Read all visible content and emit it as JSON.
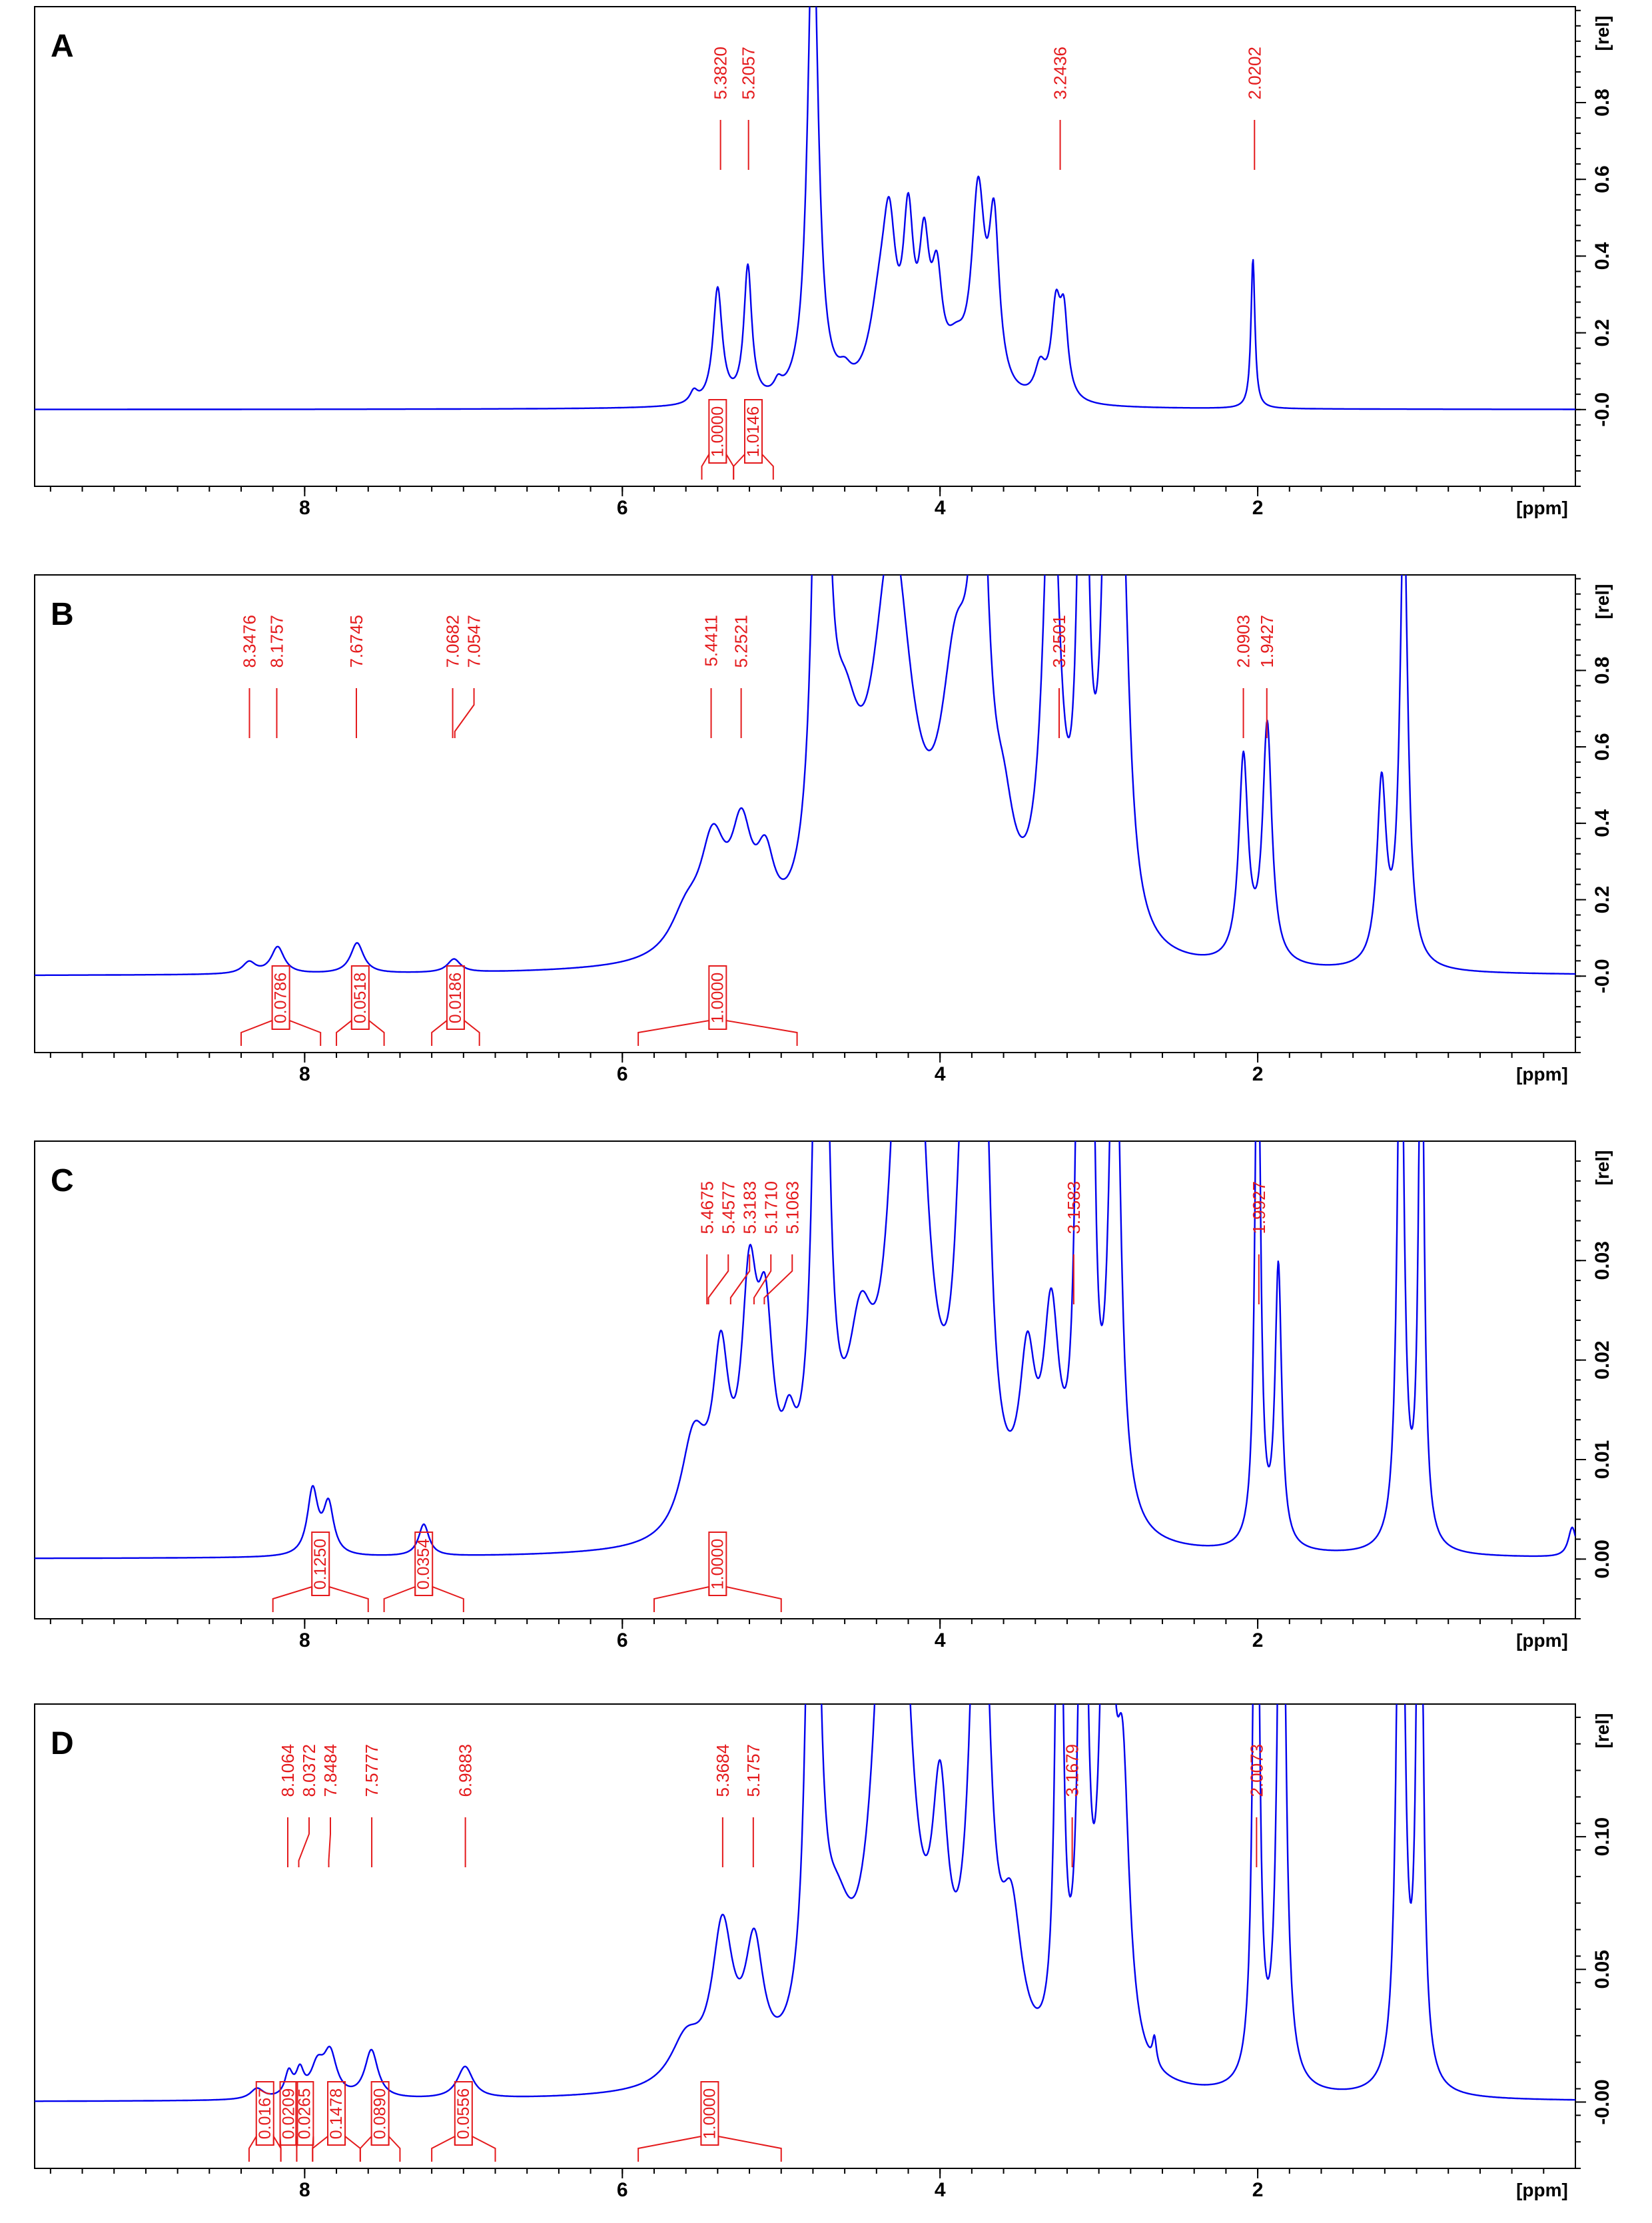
{
  "figure": {
    "background": "#ffffff",
    "spectrum_color": "#0000ee",
    "annotation_color": "#e41a1c"
  },
  "chart_data": [
    {
      "type": "line",
      "panel_label": "A",
      "x_unit_label": "[ppm]",
      "y_unit_label": "[rel]",
      "x_range": [
        9.7,
        0.0
      ],
      "x_ticks": [
        "8",
        "6",
        "4",
        "2"
      ],
      "x_tick_values": [
        8,
        6,
        4,
        2
      ],
      "y_range": [
        -0.2,
        1.05
      ],
      "y_ticks": [
        "-0.0",
        "0.2",
        "0.4",
        "0.6",
        "0.8"
      ],
      "y_tick_values": [
        0.0,
        0.2,
        0.4,
        0.6,
        0.8
      ],
      "peak_labels": [
        {
          "text": "5.3820",
          "ppm": 5.382
        },
        {
          "text": "5.2057",
          "ppm": 5.2057
        },
        {
          "text": "3.2436",
          "ppm": 3.2436
        },
        {
          "text": "2.0202",
          "ppm": 2.0202
        }
      ],
      "integrals": [
        {
          "text": "1.0000",
          "from": 5.5,
          "to": 5.3
        },
        {
          "text": "1.0146",
          "from": 5.3,
          "to": 5.05
        }
      ],
      "peaks": [
        {
          "ppm": 5.55,
          "h": 0.03,
          "w": 0.03
        },
        {
          "ppm": 5.4,
          "h": 0.3,
          "w": 0.035
        },
        {
          "ppm": 5.21,
          "h": 0.35,
          "w": 0.03
        },
        {
          "ppm": 5.02,
          "h": 0.03,
          "w": 0.03
        },
        {
          "ppm": 4.8,
          "h": 1.3,
          "w": 0.04
        },
        {
          "ppm": 4.6,
          "h": 0.04,
          "w": 0.05
        },
        {
          "ppm": 4.38,
          "h": 0.2,
          "w": 0.08
        },
        {
          "ppm": 4.32,
          "h": 0.35,
          "w": 0.05
        },
        {
          "ppm": 4.2,
          "h": 0.4,
          "w": 0.04
        },
        {
          "ppm": 4.1,
          "h": 0.33,
          "w": 0.04
        },
        {
          "ppm": 4.02,
          "h": 0.25,
          "w": 0.04
        },
        {
          "ppm": 3.9,
          "h": 0.1,
          "w": 0.08
        },
        {
          "ppm": 3.76,
          "h": 0.5,
          "w": 0.05
        },
        {
          "ppm": 3.66,
          "h": 0.42,
          "w": 0.04
        },
        {
          "ppm": 3.37,
          "h": 0.08,
          "w": 0.04
        },
        {
          "ppm": 3.27,
          "h": 0.23,
          "w": 0.035
        },
        {
          "ppm": 3.22,
          "h": 0.2,
          "w": 0.03
        },
        {
          "ppm": 2.03,
          "h": 0.39,
          "w": 0.015
        }
      ]
    },
    {
      "type": "line",
      "panel_label": "B",
      "x_unit_label": "[ppm]",
      "y_unit_label": "[rel]",
      "x_range": [
        9.7,
        0.0
      ],
      "x_ticks": [
        "8",
        "6",
        "4",
        "2"
      ],
      "x_tick_values": [
        8,
        6,
        4,
        2
      ],
      "y_range": [
        -0.2,
        1.05
      ],
      "y_ticks": [
        "-0.0",
        "0.2",
        "0.4",
        "0.6",
        "0.8"
      ],
      "y_tick_values": [
        0.0,
        0.2,
        0.4,
        0.6,
        0.8
      ],
      "peak_labels": [
        {
          "text": "8.3476",
          "ppm": 8.3476
        },
        {
          "text": "8.1757",
          "ppm": 8.1757
        },
        {
          "text": "7.6745",
          "ppm": 7.6745
        },
        {
          "text": "7.0682",
          "ppm": 7.0682
        },
        {
          "text": "7.0547",
          "ppm": 7.0547
        },
        {
          "text": "5.4411",
          "ppm": 5.4411
        },
        {
          "text": "5.2521",
          "ppm": 5.2521
        },
        {
          "text": "3.2501",
          "ppm": 3.2501
        },
        {
          "text": "2.0903",
          "ppm": 2.0903
        },
        {
          "text": "1.9427",
          "ppm": 1.9427
        }
      ],
      "integrals": [
        {
          "text": "0.0786",
          "from": 8.4,
          "to": 7.9
        },
        {
          "text": "0.0518",
          "from": 7.8,
          "to": 7.5
        },
        {
          "text": "0.0186",
          "from": 7.2,
          "to": 6.9
        },
        {
          "text": "1.0000",
          "from": 5.9,
          "to": 4.9
        }
      ],
      "peaks": [
        {
          "ppm": 8.35,
          "h": 0.03,
          "w": 0.05
        },
        {
          "ppm": 8.17,
          "h": 0.07,
          "w": 0.05
        },
        {
          "ppm": 7.67,
          "h": 0.08,
          "w": 0.05
        },
        {
          "ppm": 7.06,
          "h": 0.035,
          "w": 0.05
        },
        {
          "ppm": 5.6,
          "h": 0.1,
          "w": 0.12
        },
        {
          "ppm": 5.43,
          "h": 0.27,
          "w": 0.1
        },
        {
          "ppm": 5.25,
          "h": 0.27,
          "w": 0.08
        },
        {
          "ppm": 5.1,
          "h": 0.18,
          "w": 0.07
        },
        {
          "ppm": 4.75,
          "h": 2.5,
          "w": 0.04
        },
        {
          "ppm": 4.6,
          "h": 0.4,
          "w": 0.12
        },
        {
          "ppm": 4.3,
          "h": 1.0,
          "w": 0.15
        },
        {
          "ppm": 3.9,
          "h": 0.6,
          "w": 0.12
        },
        {
          "ppm": 3.75,
          "h": 1.2,
          "w": 0.06
        },
        {
          "ppm": 3.6,
          "h": 0.2,
          "w": 0.08
        },
        {
          "ppm": 3.3,
          "h": 1.3,
          "w": 0.06
        },
        {
          "ppm": 3.1,
          "h": 2.0,
          "w": 0.03
        },
        {
          "ppm": 2.93,
          "h": 2.0,
          "w": 0.04
        },
        {
          "ppm": 2.85,
          "h": 0.8,
          "w": 0.05
        },
        {
          "ppm": 2.09,
          "h": 0.53,
          "w": 0.035
        },
        {
          "ppm": 1.94,
          "h": 0.62,
          "w": 0.035
        },
        {
          "ppm": 1.22,
          "h": 0.47,
          "w": 0.035
        },
        {
          "ppm": 1.08,
          "h": 1.2,
          "w": 0.03
        }
      ]
    },
    {
      "type": "line",
      "panel_label": "C",
      "x_unit_label": "[ppm]",
      "y_unit_label": "[rel]",
      "x_range": [
        9.7,
        0.0
      ],
      "x_ticks": [
        "8",
        "6",
        "4",
        "2"
      ],
      "x_tick_values": [
        8,
        6,
        4,
        2
      ],
      "y_range": [
        -0.006,
        0.042
      ],
      "y_ticks": [
        "0.00",
        "0.01",
        "0.02",
        "0.03"
      ],
      "y_tick_values": [
        0.0,
        0.01,
        0.02,
        0.03
      ],
      "peak_labels": [
        {
          "text": "5.4675",
          "ppm": 5.4675
        },
        {
          "text": "5.4577",
          "ppm": 5.4577
        },
        {
          "text": "5.3183",
          "ppm": 5.3183
        },
        {
          "text": "5.1710",
          "ppm": 5.171
        },
        {
          "text": "5.1063",
          "ppm": 5.1063
        },
        {
          "text": "3.1583",
          "ppm": 3.1583
        },
        {
          "text": "1.9927",
          "ppm": 1.9927
        }
      ],
      "integrals": [
        {
          "text": "0.1250",
          "from": 8.2,
          "to": 7.6
        },
        {
          "text": "0.0354",
          "from": 7.5,
          "to": 7.0
        },
        {
          "text": "1.0000",
          "from": 5.8,
          "to": 5.0
        }
      ],
      "peaks": [
        {
          "ppm": 7.95,
          "h": 0.0065,
          "w": 0.04
        },
        {
          "ppm": 7.85,
          "h": 0.005,
          "w": 0.04
        },
        {
          "ppm": 7.25,
          "h": 0.0032,
          "w": 0.04
        },
        {
          "ppm": 5.55,
          "h": 0.01,
          "w": 0.1
        },
        {
          "ppm": 5.38,
          "h": 0.016,
          "w": 0.06
        },
        {
          "ppm": 5.2,
          "h": 0.022,
          "w": 0.06
        },
        {
          "ppm": 5.1,
          "h": 0.018,
          "w": 0.06
        },
        {
          "ppm": 4.95,
          "h": 0.006,
          "w": 0.05
        },
        {
          "ppm": 4.75,
          "h": 0.1,
          "w": 0.04
        },
        {
          "ppm": 4.5,
          "h": 0.015,
          "w": 0.1
        },
        {
          "ppm": 4.2,
          "h": 0.08,
          "w": 0.1
        },
        {
          "ppm": 3.85,
          "h": 0.036,
          "w": 0.06
        },
        {
          "ppm": 3.73,
          "h": 0.05,
          "w": 0.05
        },
        {
          "ppm": 3.45,
          "h": 0.015,
          "w": 0.06
        },
        {
          "ppm": 3.3,
          "h": 0.02,
          "w": 0.06
        },
        {
          "ppm": 3.12,
          "h": 0.06,
          "w": 0.03
        },
        {
          "ppm": 3.05,
          "h": 0.06,
          "w": 0.025
        },
        {
          "ppm": 2.9,
          "h": 0.06,
          "w": 0.04
        },
        {
          "ppm": 2.0,
          "h": 0.06,
          "w": 0.02
        },
        {
          "ppm": 1.87,
          "h": 0.028,
          "w": 0.025
        },
        {
          "ppm": 1.1,
          "h": 0.06,
          "w": 0.025
        },
        {
          "ppm": 0.97,
          "h": 0.06,
          "w": 0.02
        },
        {
          "ppm": 0.02,
          "h": 0.003,
          "w": 0.03
        }
      ]
    },
    {
      "type": "line",
      "panel_label": "D",
      "x_unit_label": "[ppm]",
      "y_unit_label": "[rel]",
      "x_range": [
        9.7,
        0.0
      ],
      "x_ticks": [
        "8",
        "6",
        "4",
        "2"
      ],
      "x_tick_values": [
        8,
        6,
        4,
        2
      ],
      "y_range": [
        -0.025,
        0.15
      ],
      "y_ticks": [
        "-0.00",
        "0.05",
        "0.10"
      ],
      "y_tick_values": [
        0.0,
        0.05,
        0.1
      ],
      "peak_labels": [
        {
          "text": "8.1064",
          "ppm": 8.1064
        },
        {
          "text": "8.0372",
          "ppm": 8.0372
        },
        {
          "text": "7.8484",
          "ppm": 7.8484
        },
        {
          "text": "7.5777",
          "ppm": 7.5777
        },
        {
          "text": "6.9883",
          "ppm": 6.9883
        },
        {
          "text": "5.3684",
          "ppm": 5.3684
        },
        {
          "text": "5.1757",
          "ppm": 5.1757
        },
        {
          "text": "3.1679",
          "ppm": 3.1679
        },
        {
          "text": "2.0073",
          "ppm": 2.0073
        }
      ],
      "integrals": [
        {
          "text": "0.0167",
          "from": 8.35,
          "to": 8.15
        },
        {
          "text": "0.0209",
          "from": 8.15,
          "to": 8.05
        },
        {
          "text": "0.0265",
          "from": 8.05,
          "to": 7.95
        },
        {
          "text": "0.1478",
          "from": 7.95,
          "to": 7.65
        },
        {
          "text": "0.0890",
          "from": 7.65,
          "to": 7.4
        },
        {
          "text": "0.0556",
          "from": 7.2,
          "to": 6.8
        },
        {
          "text": "1.0000",
          "from": 5.9,
          "to": 5.0
        }
      ],
      "peaks": [
        {
          "ppm": 8.3,
          "h": 0.004,
          "w": 0.05
        },
        {
          "ppm": 8.1,
          "h": 0.009,
          "w": 0.03
        },
        {
          "ppm": 8.03,
          "h": 0.009,
          "w": 0.03
        },
        {
          "ppm": 7.92,
          "h": 0.011,
          "w": 0.05
        },
        {
          "ppm": 7.84,
          "h": 0.016,
          "w": 0.05
        },
        {
          "ppm": 7.58,
          "h": 0.018,
          "w": 0.05
        },
        {
          "ppm": 6.99,
          "h": 0.012,
          "w": 0.06
        },
        {
          "ppm": 5.6,
          "h": 0.017,
          "w": 0.12
        },
        {
          "ppm": 5.37,
          "h": 0.056,
          "w": 0.08
        },
        {
          "ppm": 5.17,
          "h": 0.046,
          "w": 0.07
        },
        {
          "ppm": 4.8,
          "h": 0.3,
          "w": 0.04
        },
        {
          "ppm": 4.65,
          "h": 0.04,
          "w": 0.12
        },
        {
          "ppm": 4.3,
          "h": 0.3,
          "w": 0.1
        },
        {
          "ppm": 4.0,
          "h": 0.08,
          "w": 0.06
        },
        {
          "ppm": 3.75,
          "h": 0.25,
          "w": 0.06
        },
        {
          "ppm": 3.55,
          "h": 0.05,
          "w": 0.08
        },
        {
          "ppm": 3.25,
          "h": 0.25,
          "w": 0.025
        },
        {
          "ppm": 3.1,
          "h": 0.25,
          "w": 0.03
        },
        {
          "ppm": 2.95,
          "h": 0.25,
          "w": 0.04
        },
        {
          "ppm": 2.85,
          "h": 0.1,
          "w": 0.05
        },
        {
          "ppm": 2.65,
          "h": 0.01,
          "w": 0.015
        },
        {
          "ppm": 2.01,
          "h": 0.3,
          "w": 0.02
        },
        {
          "ppm": 1.85,
          "h": 0.3,
          "w": 0.025
        },
        {
          "ppm": 1.1,
          "h": 0.3,
          "w": 0.025
        },
        {
          "ppm": 0.98,
          "h": 0.3,
          "w": 0.02
        }
      ]
    }
  ]
}
